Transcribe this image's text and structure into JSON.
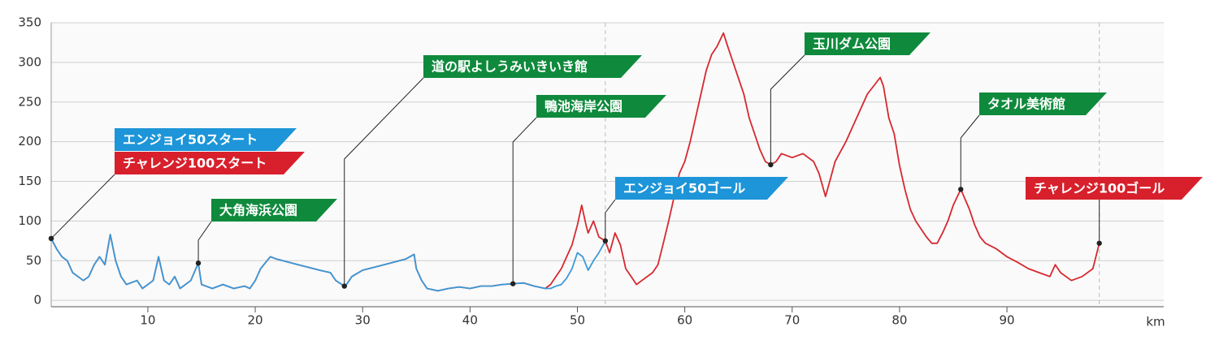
{
  "chart_data": {
    "type": "line",
    "xlim": [
      1,
      104.6
    ],
    "ylim": [
      -8,
      350
    ],
    "xticks": [
      10,
      20,
      30,
      40,
      50,
      60,
      70,
      80,
      90
    ],
    "yticks": [
      0,
      50,
      100,
      150,
      200,
      250,
      300,
      350
    ],
    "x_label": "km",
    "grid": true,
    "vlines": [
      52.6,
      98.6
    ],
    "series": [
      {
        "name": "チャレンジ100",
        "color": "#d7282f",
        "x": [
          1,
          1.5,
          2,
          2.5,
          3,
          3.5,
          4,
          4.5,
          5,
          5.5,
          6,
          6.5,
          7,
          7.5,
          8,
          9,
          9.5,
          10,
          10.5,
          11,
          11.5,
          12,
          12.5,
          13,
          14,
          14.7,
          15,
          16,
          17,
          18,
          19,
          19.5,
          20,
          20.5,
          21.4,
          22,
          24,
          26,
          27,
          27.5,
          28.3,
          28.5,
          29,
          30,
          32,
          34,
          34.8,
          35,
          35.5,
          36,
          37,
          38,
          39,
          40,
          41,
          42,
          43,
          44,
          45,
          46,
          47,
          47.5,
          48,
          48.5,
          49,
          49.5,
          50,
          50.4,
          50.8,
          51,
          51.5,
          52,
          52.6,
          53,
          53.5,
          54,
          54.5,
          55,
          55.5,
          56,
          57,
          57.5,
          58,
          58.5,
          59,
          59.5,
          60,
          60.5,
          61,
          61.5,
          62,
          62.5,
          63,
          63.6,
          64,
          64.5,
          65,
          65.5,
          66,
          66.5,
          67,
          67.5,
          68,
          68.5,
          69,
          70,
          71,
          72,
          72.5,
          73.1,
          73.5,
          74,
          75,
          76,
          77,
          78.2,
          78.5,
          79,
          79.5,
          80,
          80.5,
          81,
          81.5,
          82,
          82.5,
          83,
          83.5,
          84,
          84.5,
          85,
          85.7,
          86.5,
          87,
          87.5,
          88,
          89,
          90,
          91,
          92,
          93,
          94,
          94.5,
          95,
          96,
          97,
          98,
          98.6
        ],
        "values": [
          78,
          65,
          55,
          50,
          35,
          30,
          25,
          30,
          45,
          55,
          45,
          83,
          50,
          30,
          20,
          25,
          15,
          20,
          25,
          55,
          25,
          20,
          30,
          15,
          25,
          47,
          20,
          15,
          20,
          15,
          18,
          15,
          25,
          40,
          55,
          52,
          45,
          38,
          35,
          25,
          18,
          20,
          30,
          38,
          45,
          52,
          58,
          40,
          25,
          15,
          12,
          15,
          17,
          15,
          18,
          18,
          20,
          21,
          22,
          18,
          15,
          20,
          30,
          40,
          55,
          70,
          95,
          120,
          95,
          85,
          100,
          80,
          75,
          60,
          85,
          70,
          40,
          30,
          20,
          25,
          35,
          45,
          72,
          100,
          130,
          160,
          175,
          200,
          230,
          260,
          290,
          310,
          320,
          337,
          320,
          300,
          280,
          260,
          230,
          210,
          190,
          175,
          171,
          175,
          185,
          180,
          185,
          175,
          160,
          131,
          150,
          175,
          200,
          230,
          260,
          281,
          270,
          230,
          210,
          170,
          140,
          115,
          100,
          90,
          80,
          72,
          72,
          85,
          100,
          120,
          140,
          115,
          95,
          80,
          72,
          65,
          55,
          48,
          40,
          35,
          30,
          45,
          35,
          25,
          30,
          40,
          72
        ]
      },
      {
        "name": "エンジョイ50",
        "color": "#3a9ad9",
        "x": [
          1,
          1.5,
          2,
          2.5,
          3,
          3.5,
          4,
          4.5,
          5,
          5.5,
          6,
          6.5,
          7,
          7.5,
          8,
          9,
          9.5,
          10,
          10.5,
          11,
          11.5,
          12,
          12.5,
          13,
          14,
          14.7,
          15,
          16,
          17,
          18,
          19,
          19.5,
          20,
          20.5,
          21.4,
          22,
          24,
          26,
          27,
          27.5,
          28.3,
          28.5,
          29,
          30,
          32,
          34,
          34.8,
          35,
          35.5,
          36,
          37,
          38,
          39,
          40,
          41,
          42,
          43,
          44,
          45,
          46,
          47,
          47.5,
          48,
          48.5,
          49,
          49.5,
          50,
          50.5,
          51,
          51.5,
          52,
          52.6
        ],
        "values": [
          78,
          65,
          55,
          50,
          35,
          30,
          25,
          30,
          45,
          55,
          45,
          83,
          50,
          30,
          20,
          25,
          15,
          20,
          25,
          55,
          25,
          20,
          30,
          15,
          25,
          47,
          20,
          15,
          20,
          15,
          18,
          15,
          25,
          40,
          55,
          52,
          45,
          38,
          35,
          25,
          18,
          20,
          30,
          38,
          45,
          52,
          58,
          40,
          25,
          15,
          12,
          15,
          17,
          15,
          18,
          18,
          20,
          21,
          22,
          18,
          15,
          15,
          18,
          20,
          28,
          40,
          60,
          55,
          38,
          50,
          60,
          75
        ]
      }
    ],
    "annotations": [
      {
        "text": "エンジョイ50スタート",
        "x": 1,
        "y": 78,
        "color": "#1d95d8"
      },
      {
        "text": "チャレンジ100スタート",
        "x": 1,
        "y": 78,
        "color": "#d7202c"
      },
      {
        "text": "大角海浜公園",
        "x": 14.7,
        "y": 47,
        "color": "#0f8a3c"
      },
      {
        "text": "道の駅よしうみいきいき館",
        "x": 28.3,
        "y": 18,
        "color": "#0f8a3c"
      },
      {
        "text": "鴨池海岸公園",
        "x": 44,
        "y": 21,
        "color": "#0f8a3c"
      },
      {
        "text": "エンジョイ50ゴール",
        "x": 52.6,
        "y": 75,
        "color": "#1d95d8"
      },
      {
        "text": "玉川ダム公園",
        "x": 68,
        "y": 171,
        "color": "#0f8a3c"
      },
      {
        "text": "タオル美術館",
        "x": 85.7,
        "y": 140,
        "color": "#0f8a3c"
      },
      {
        "text": "チャレンジ100ゴール",
        "x": 98.6,
        "y": 72,
        "color": "#d7202c"
      }
    ]
  }
}
